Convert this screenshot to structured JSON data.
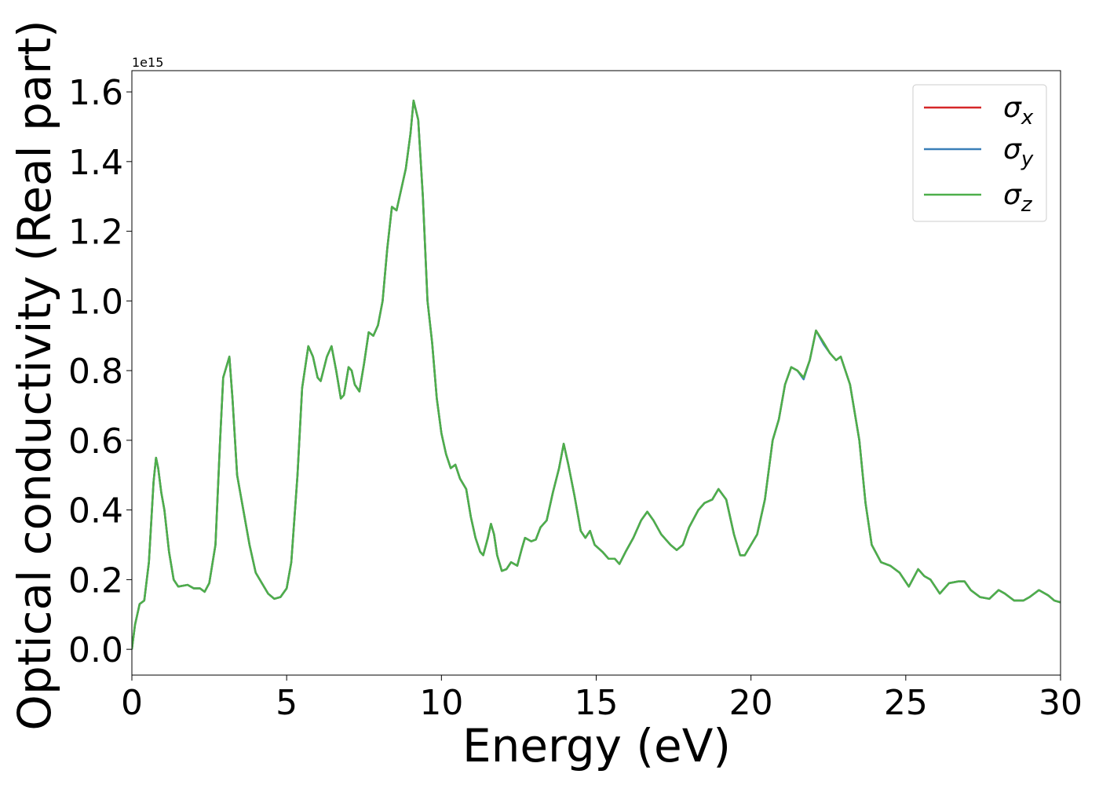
{
  "chart_data": {
    "type": "line",
    "xlabel": "Energy (eV)",
    "ylabel": "Optical conductivity (Real part)",
    "y_offset_label": "1e15",
    "legend": "upper right",
    "grid": false,
    "xlim": [
      0,
      30
    ],
    "ylim": [
      -0.074,
      1.661
    ],
    "xticks": [
      0,
      5,
      10,
      15,
      20,
      25,
      30
    ],
    "yticks": [
      {
        "value": 0,
        "label": "0.0"
      },
      0.2,
      0.4,
      0.6,
      0.8,
      {
        "value": 1,
        "label": "1.0"
      },
      1.2,
      1.4,
      1.6
    ],
    "x": [
      0,
      0.1,
      0.25,
      0.4,
      0.55,
      0.7,
      0.78,
      0.85,
      0.95,
      1.05,
      1.2,
      1.35,
      1.5,
      1.8,
      2.0,
      2.2,
      2.35,
      2.5,
      2.7,
      2.85,
      2.95,
      3.05,
      3.15,
      3.25,
      3.4,
      3.6,
      3.8,
      4.0,
      4.2,
      4.4,
      4.6,
      4.8,
      5.0,
      5.15,
      5.35,
      5.5,
      5.7,
      5.85,
      6.0,
      6.1,
      6.3,
      6.45,
      6.6,
      6.75,
      6.85,
      7.0,
      7.1,
      7.2,
      7.35,
      7.5,
      7.65,
      7.8,
      7.95,
      8.1,
      8.25,
      8.4,
      8.55,
      8.7,
      8.85,
      9.0,
      9.1,
      9.25,
      9.4,
      9.55,
      9.7,
      9.85,
      10.0,
      10.15,
      10.3,
      10.45,
      10.6,
      10.8,
      10.95,
      11.1,
      11.25,
      11.35,
      11.5,
      11.6,
      11.7,
      11.8,
      11.95,
      12.1,
      12.25,
      12.45,
      12.6,
      12.7,
      12.9,
      13.05,
      13.2,
      13.4,
      13.6,
      13.8,
      13.95,
      14.1,
      14.3,
      14.5,
      14.65,
      14.8,
      14.95,
      15.2,
      15.4,
      15.6,
      15.75,
      15.95,
      16.2,
      16.45,
      16.65,
      16.85,
      17.1,
      17.4,
      17.6,
      17.8,
      18.0,
      18.3,
      18.5,
      18.75,
      18.95,
      19.2,
      19.45,
      19.65,
      19.8,
      20.0,
      20.2,
      20.45,
      20.7,
      20.9,
      21.1,
      21.3,
      21.5,
      21.7,
      21.9,
      22.1,
      22.35,
      22.55,
      22.75,
      22.9,
      23.2,
      23.5,
      23.7,
      23.9,
      24.2,
      24.5,
      24.8,
      25.1,
      25.4,
      25.6,
      25.8,
      26.1,
      26.4,
      26.7,
      26.9,
      27.1,
      27.4,
      27.7,
      28.0,
      28.2,
      28.5,
      28.8,
      29.0,
      29.3,
      29.6,
      29.8,
      30.0
    ],
    "series": [
      {
        "name": "σx",
        "color": "#d62728",
        "values": [
          0,
          0.07,
          0.13,
          0.14,
          0.25,
          0.48,
          0.55,
          0.52,
          0.45,
          0.4,
          0.28,
          0.2,
          0.18,
          0.185,
          0.175,
          0.175,
          0.165,
          0.19,
          0.3,
          0.6,
          0.78,
          0.81,
          0.84,
          0.72,
          0.5,
          0.4,
          0.3,
          0.22,
          0.19,
          0.16,
          0.145,
          0.15,
          0.175,
          0.25,
          0.5,
          0.75,
          0.87,
          0.84,
          0.78,
          0.77,
          0.84,
          0.87,
          0.8,
          0.72,
          0.73,
          0.81,
          0.8,
          0.76,
          0.74,
          0.82,
          0.91,
          0.9,
          0.93,
          1.0,
          1.15,
          1.27,
          1.26,
          1.32,
          1.38,
          1.48,
          1.575,
          1.52,
          1.3,
          1.0,
          0.88,
          0.72,
          0.62,
          0.56,
          0.52,
          0.53,
          0.49,
          0.46,
          0.38,
          0.32,
          0.28,
          0.27,
          0.32,
          0.36,
          0.33,
          0.27,
          0.225,
          0.23,
          0.25,
          0.24,
          0.29,
          0.32,
          0.31,
          0.315,
          0.35,
          0.37,
          0.45,
          0.52,
          0.59,
          0.53,
          0.44,
          0.34,
          0.32,
          0.34,
          0.3,
          0.28,
          0.26,
          0.26,
          0.245,
          0.28,
          0.32,
          0.37,
          0.395,
          0.37,
          0.33,
          0.3,
          0.285,
          0.3,
          0.35,
          0.4,
          0.42,
          0.43,
          0.46,
          0.43,
          0.33,
          0.27,
          0.27,
          0.3,
          0.33,
          0.43,
          0.6,
          0.66,
          0.76,
          0.81,
          0.8,
          0.78,
          0.83,
          0.915,
          0.88,
          0.85,
          0.83,
          0.84,
          0.76,
          0.6,
          0.42,
          0.3,
          0.25,
          0.24,
          0.22,
          0.18,
          0.23,
          0.21,
          0.2,
          0.16,
          0.19,
          0.195,
          0.195,
          0.17,
          0.15,
          0.145,
          0.17,
          0.16,
          0.14,
          0.14,
          0.15,
          0.17,
          0.155,
          0.14,
          0.135
        ]
      },
      {
        "name": "σy",
        "color": "#3a7fb8",
        "values": [
          0,
          0.07,
          0.13,
          0.14,
          0.25,
          0.48,
          0.55,
          0.52,
          0.45,
          0.4,
          0.28,
          0.2,
          0.18,
          0.185,
          0.175,
          0.175,
          0.165,
          0.19,
          0.3,
          0.6,
          0.78,
          0.81,
          0.84,
          0.72,
          0.5,
          0.4,
          0.3,
          0.22,
          0.19,
          0.16,
          0.145,
          0.15,
          0.175,
          0.25,
          0.5,
          0.75,
          0.87,
          0.84,
          0.78,
          0.77,
          0.84,
          0.87,
          0.8,
          0.72,
          0.73,
          0.81,
          0.8,
          0.76,
          0.74,
          0.82,
          0.91,
          0.9,
          0.93,
          1.0,
          1.15,
          1.27,
          1.26,
          1.32,
          1.38,
          1.48,
          1.575,
          1.52,
          1.3,
          1.0,
          0.88,
          0.72,
          0.62,
          0.56,
          0.52,
          0.53,
          0.49,
          0.46,
          0.38,
          0.32,
          0.28,
          0.27,
          0.32,
          0.36,
          0.33,
          0.27,
          0.225,
          0.23,
          0.25,
          0.24,
          0.29,
          0.32,
          0.31,
          0.315,
          0.35,
          0.37,
          0.45,
          0.52,
          0.59,
          0.53,
          0.44,
          0.34,
          0.32,
          0.34,
          0.3,
          0.28,
          0.26,
          0.26,
          0.245,
          0.28,
          0.32,
          0.37,
          0.395,
          0.37,
          0.33,
          0.3,
          0.285,
          0.3,
          0.35,
          0.4,
          0.42,
          0.43,
          0.46,
          0.43,
          0.33,
          0.27,
          0.27,
          0.3,
          0.33,
          0.43,
          0.6,
          0.66,
          0.76,
          0.81,
          0.8,
          0.775,
          0.83,
          0.915,
          0.875,
          0.85,
          0.83,
          0.84,
          0.76,
          0.6,
          0.42,
          0.3,
          0.25,
          0.24,
          0.22,
          0.18,
          0.23,
          0.21,
          0.2,
          0.16,
          0.19,
          0.195,
          0.195,
          0.17,
          0.15,
          0.145,
          0.17,
          0.16,
          0.14,
          0.14,
          0.15,
          0.17,
          0.155,
          0.14,
          0.135
        ]
      },
      {
        "name": "σz",
        "color": "#4daf4a",
        "values": [
          0,
          0.07,
          0.13,
          0.14,
          0.25,
          0.48,
          0.55,
          0.52,
          0.45,
          0.4,
          0.28,
          0.2,
          0.18,
          0.185,
          0.175,
          0.175,
          0.165,
          0.19,
          0.3,
          0.6,
          0.78,
          0.81,
          0.84,
          0.72,
          0.5,
          0.4,
          0.3,
          0.22,
          0.19,
          0.16,
          0.145,
          0.15,
          0.175,
          0.25,
          0.5,
          0.75,
          0.87,
          0.84,
          0.78,
          0.77,
          0.84,
          0.87,
          0.8,
          0.72,
          0.73,
          0.81,
          0.8,
          0.76,
          0.74,
          0.82,
          0.91,
          0.9,
          0.93,
          1.0,
          1.15,
          1.27,
          1.26,
          1.32,
          1.38,
          1.48,
          1.575,
          1.52,
          1.3,
          1.0,
          0.88,
          0.72,
          0.62,
          0.56,
          0.52,
          0.53,
          0.49,
          0.46,
          0.38,
          0.32,
          0.28,
          0.27,
          0.32,
          0.36,
          0.33,
          0.27,
          0.225,
          0.23,
          0.25,
          0.24,
          0.29,
          0.32,
          0.31,
          0.315,
          0.35,
          0.37,
          0.45,
          0.52,
          0.59,
          0.53,
          0.44,
          0.34,
          0.32,
          0.34,
          0.3,
          0.28,
          0.26,
          0.26,
          0.245,
          0.28,
          0.32,
          0.37,
          0.395,
          0.37,
          0.33,
          0.3,
          0.285,
          0.3,
          0.35,
          0.4,
          0.42,
          0.43,
          0.46,
          0.43,
          0.33,
          0.27,
          0.27,
          0.3,
          0.33,
          0.43,
          0.6,
          0.66,
          0.76,
          0.81,
          0.8,
          0.78,
          0.83,
          0.915,
          0.88,
          0.85,
          0.83,
          0.84,
          0.76,
          0.6,
          0.42,
          0.3,
          0.25,
          0.24,
          0.22,
          0.18,
          0.23,
          0.21,
          0.2,
          0.16,
          0.19,
          0.195,
          0.195,
          0.17,
          0.15,
          0.145,
          0.17,
          0.16,
          0.14,
          0.14,
          0.15,
          0.17,
          0.155,
          0.14,
          0.135
        ]
      }
    ]
  }
}
